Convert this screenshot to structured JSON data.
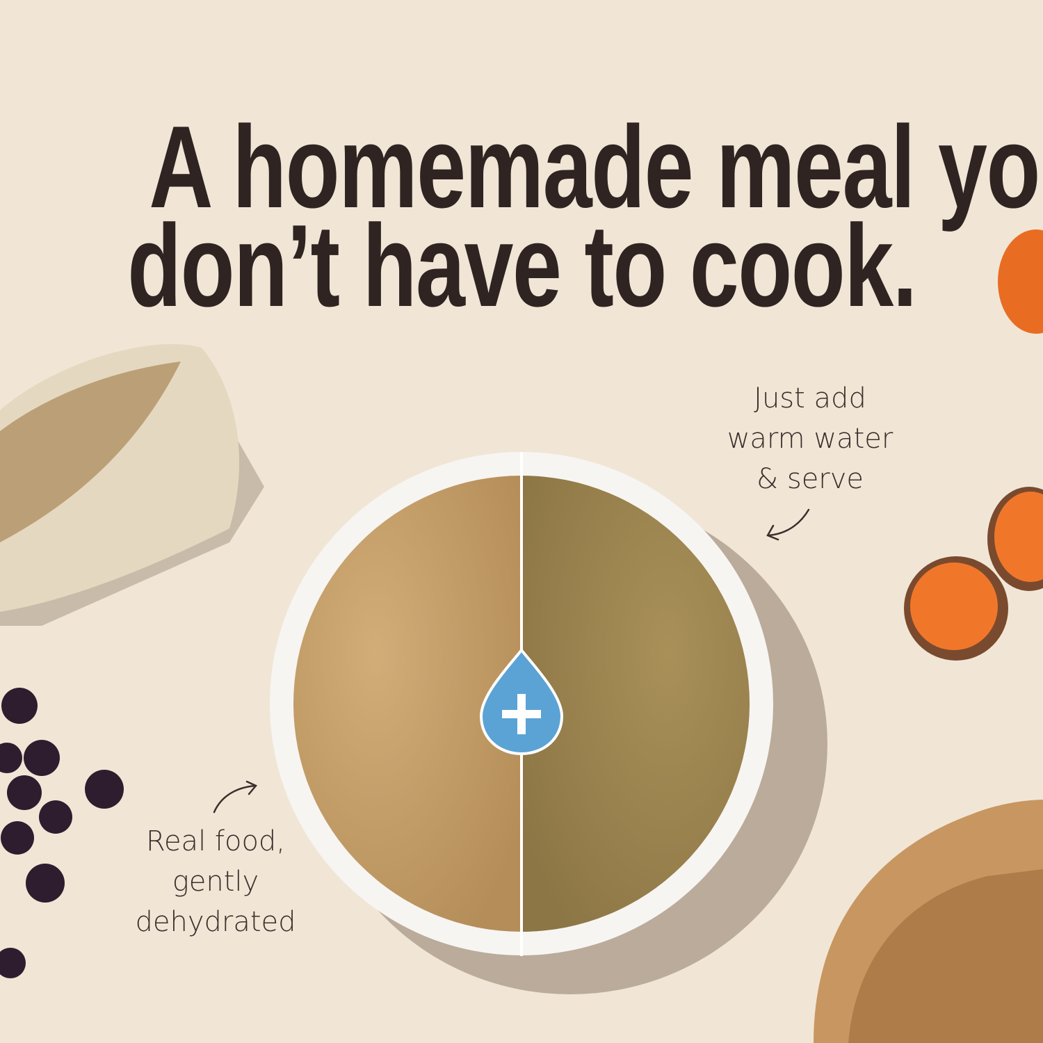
{
  "headline": {
    "line1": "A homemade meal you",
    "line2": "don’t have to cook."
  },
  "caption_right": {
    "lines": [
      "Just add",
      "warm water",
      "& serve"
    ]
  },
  "caption_left": {
    "lines": [
      "Real food,",
      "gently",
      "dehydrated"
    ]
  },
  "icons": {
    "center": "water-drop-plus-icon"
  },
  "colors": {
    "background": "#f1e6d6",
    "headline": "#2f2421",
    "drop": "#5ba3d4",
    "powder": "#c9a46d",
    "rehydrated": "#9c8650"
  }
}
